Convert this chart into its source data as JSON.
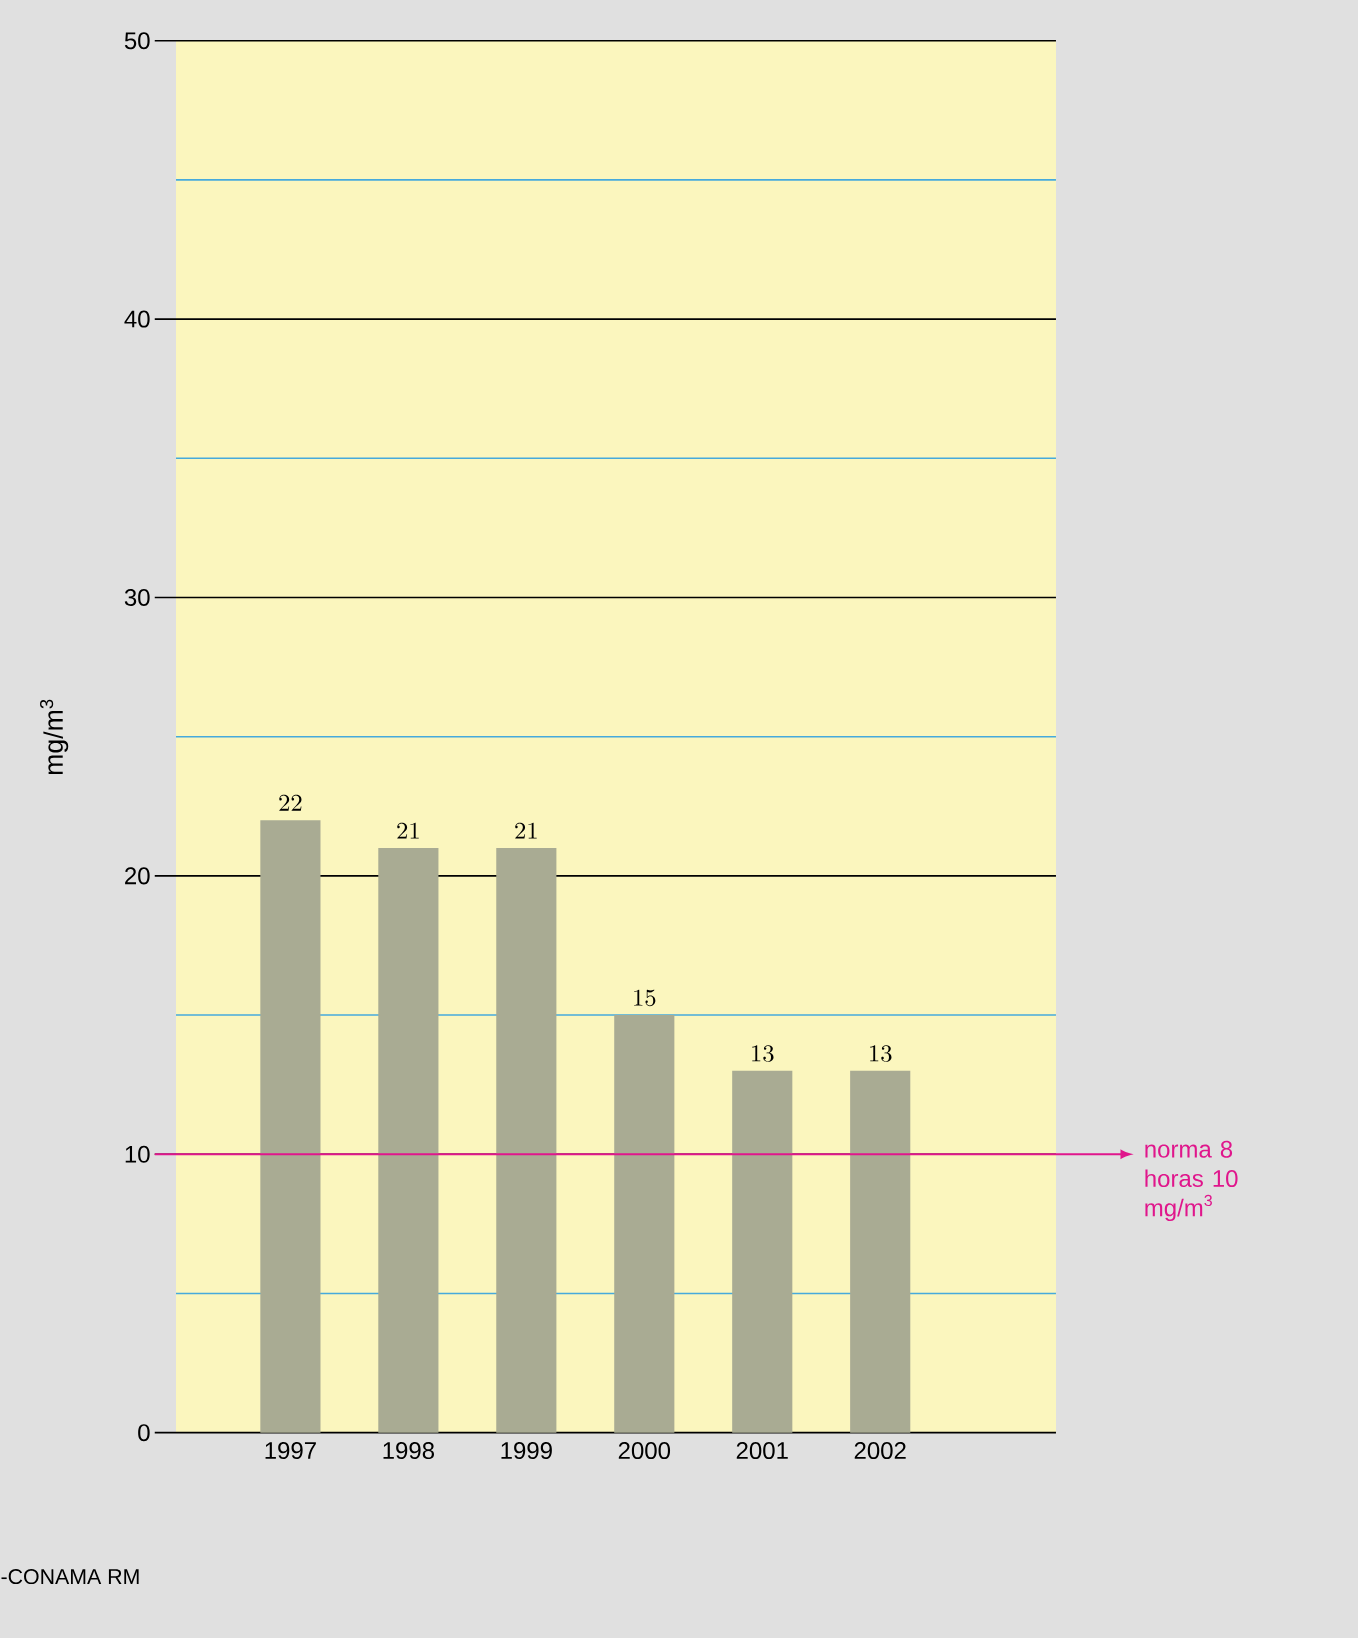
{
  "chart_data": {
    "type": "bar",
    "ylabel": "mg/m$^{3}$",
    "categories": [
      "1997",
      "1998",
      "1999",
      "2000",
      "2001",
      "2002"
    ],
    "values": [
      22,
      21,
      21,
      15,
      13,
      13
    ],
    "color": "#a9ab93",
    "data_labels": true,
    "ylim": [
      0,
      50
    ],
    "yticks": [
      0,
      {
        "value": 5,
        "label": null
      },
      10,
      {
        "value": 15,
        "label": null
      },
      20,
      {
        "value": 25,
        "label": null
      },
      30,
      {
        "value": 35,
        "label": null
      },
      40,
      {
        "value": 45,
        "label": null
      },
      50
    ],
    "grid": "y",
    "ref_lines": [
      {
        "axis": "y",
        "value": 10,
        "label": "norma 8 horas 10 mg/m$^{3}$",
        "color": "#e0168c"
      }
    ],
    "annotations": [
      "-CONAMA RM"
    ]
  }
}
